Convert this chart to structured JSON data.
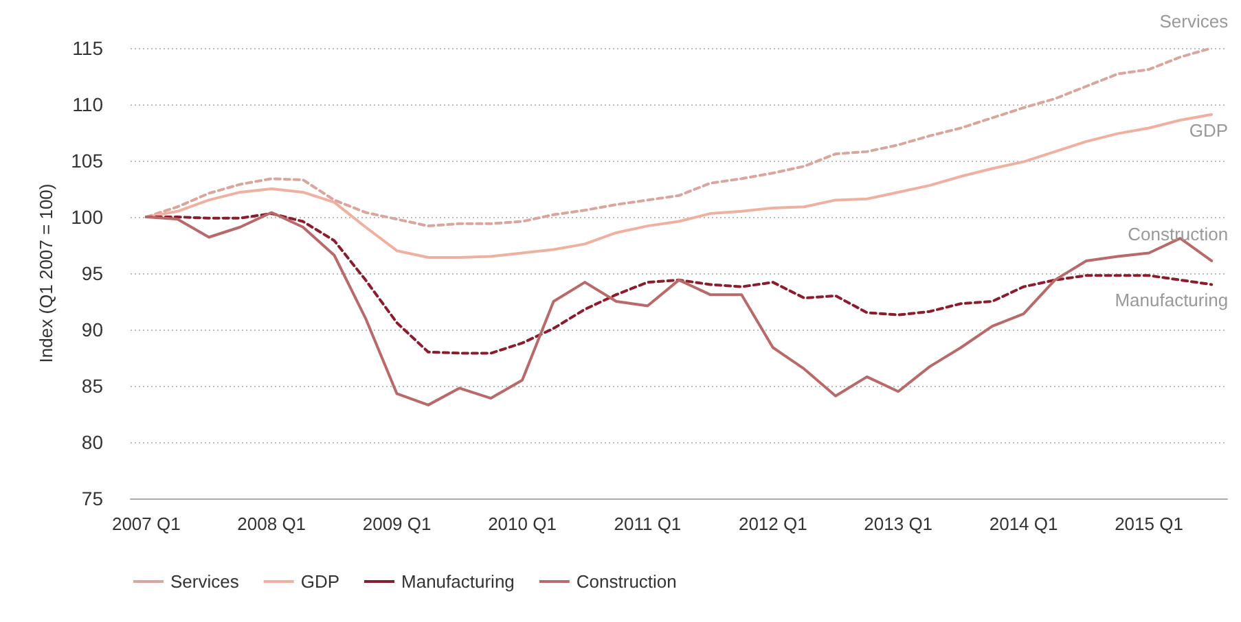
{
  "chart_data": {
    "type": "line",
    "ylabel": "Index (Q1 2007 = 100)",
    "categories": [
      "2007 Q1",
      null,
      null,
      null,
      "2008 Q1",
      null,
      null,
      null,
      "2009 Q1",
      null,
      null,
      null,
      "2010 Q1",
      null,
      null,
      null,
      "2011 Q1",
      null,
      null,
      null,
      "2012 Q1",
      null,
      null,
      null,
      "2013 Q1",
      null,
      null,
      null,
      "2014 Q1",
      null,
      null,
      null,
      "2015 Q1",
      null,
      null
    ],
    "series": [
      {
        "name": "Services",
        "color": "#d9a59c",
        "line_style": "dashed",
        "values": [
          100,
          100.9,
          102.1,
          102.9,
          103.4,
          103.3,
          101.5,
          100.4,
          99.8,
          99.2,
          99.4,
          99.4,
          99.6,
          100.2,
          100.6,
          101.1,
          101.5,
          101.9,
          103,
          103.4,
          103.9,
          104.5,
          105.6,
          105.8,
          106.4,
          107.2,
          107.9,
          108.8,
          109.7,
          110.5,
          111.6,
          112.7,
          113.1,
          114.2,
          115
        ]
      },
      {
        "name": "GDP",
        "color": "#f0b0a0",
        "line_style": "solid",
        "values": [
          100,
          100.5,
          101.5,
          102.2,
          102.5,
          102.2,
          101.3,
          99.1,
          97,
          96.4,
          96.4,
          96.5,
          96.8,
          97.1,
          97.6,
          98.6,
          99.2,
          99.6,
          100.3,
          100.5,
          100.8,
          100.9,
          101.5,
          101.6,
          102.2,
          102.8,
          103.6,
          104.3,
          104.9,
          105.8,
          106.7,
          107.4,
          107.9,
          108.6,
          109.1
        ]
      },
      {
        "name": "Manufacturing",
        "color": "#8c1c2c",
        "line_style": "dashed",
        "values": [
          100,
          100,
          99.9,
          99.9,
          100.3,
          99.6,
          97.9,
          94.4,
          90.6,
          88,
          87.9,
          87.9,
          88.8,
          90.1,
          91.8,
          93.1,
          94.2,
          94.4,
          94,
          93.8,
          94.2,
          92.8,
          93,
          91.5,
          91.3,
          91.6,
          92.3,
          92.5,
          93.8,
          94.4,
          94.8,
          94.8,
          94.8,
          94.4,
          94
        ]
      },
      {
        "name": "Construction",
        "color": "#b86a6a",
        "line_style": "solid",
        "values": [
          100,
          99.8,
          98.2,
          99.1,
          100.4,
          99.1,
          96.6,
          91,
          84.3,
          83.3,
          84.8,
          83.9,
          85.5,
          92.5,
          94.2,
          92.5,
          92.1,
          94.4,
          93.1,
          93.1,
          88.4,
          86.5,
          84.1,
          85.8,
          84.5,
          86.7,
          88.4,
          90.3,
          91.4,
          94.4,
          96.1,
          96.5,
          96.8,
          98.1,
          96.1
        ]
      }
    ],
    "ylim": [
      75,
      115
    ],
    "yticks": [
      75,
      80,
      85,
      90,
      95,
      100,
      105,
      110,
      115
    ],
    "grid": "y",
    "legend": "bottom left",
    "marker": "none"
  }
}
